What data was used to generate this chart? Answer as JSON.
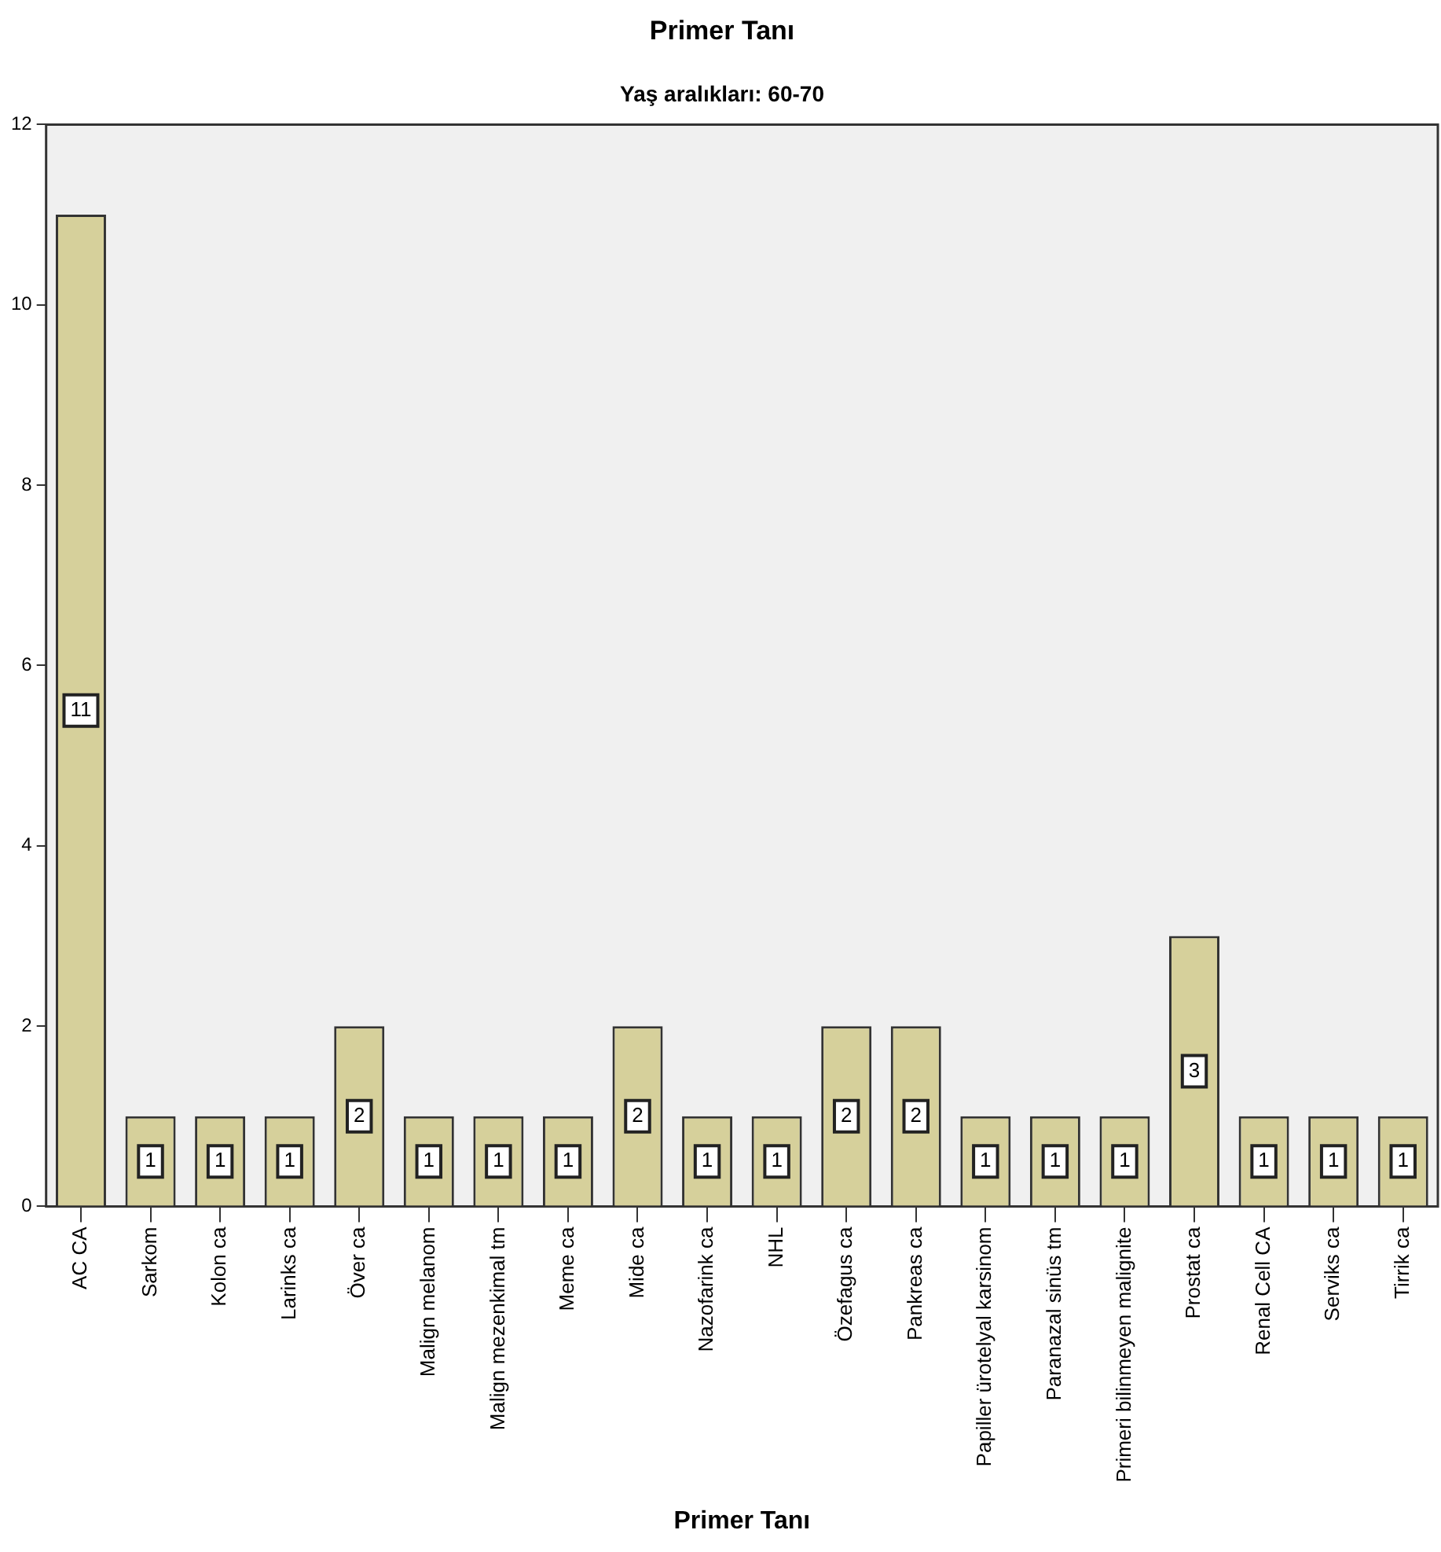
{
  "chart_data": {
    "type": "bar",
    "title": "Primer Tanı",
    "subtitle": "Yaş aralıkları: 60-70",
    "xlabel": "Primer Tanı",
    "categories": [
      "AC CA",
      "Sarkom",
      "Kolon ca",
      "Larinks ca",
      "Över ca",
      "Malign melanom",
      "Malign mezenkimal tm",
      "Meme ca",
      "Mide ca",
      "Nazofarink ca",
      "NHL",
      "Özefagus ca",
      "Pankreas ca",
      "Papiller ürotelyal karsinom",
      "Paranazal sinüs tm",
      "Primeri bilinmeyen malignite",
      "Prostat ca",
      "Renal Cell CA",
      "Serviks ca",
      "Tirrik ca"
    ],
    "values": [
      11,
      1,
      1,
      1,
      2,
      1,
      1,
      1,
      2,
      1,
      1,
      2,
      2,
      1,
      1,
      1,
      3,
      1,
      1,
      1
    ],
    "color": "#d6d09b",
    "ylim": [
      0,
      12
    ],
    "yticks": [
      0,
      2,
      4,
      6,
      8,
      10,
      12
    ],
    "data_labels": true
  }
}
